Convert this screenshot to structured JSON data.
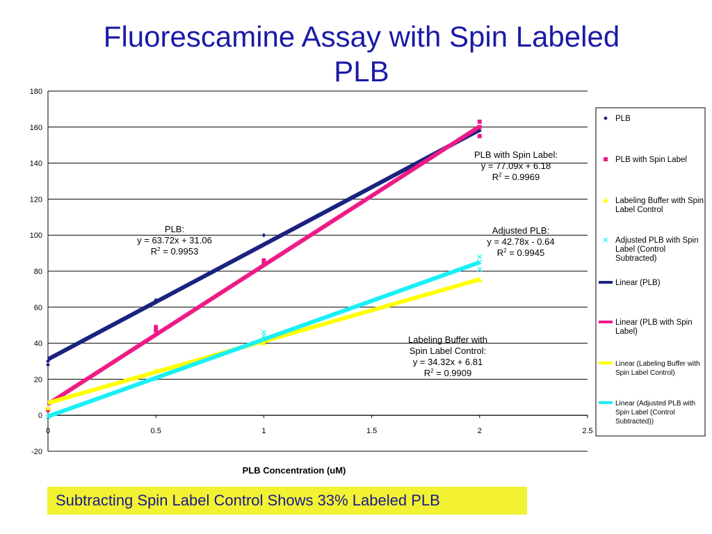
{
  "title": {
    "line1": "Fluorescamine Assay with Spin Labeled",
    "line2": "PLB"
  },
  "note": "Subtracting Spin Label Control Shows 33% Labeled PLB",
  "chart_data": {
    "type": "scatter",
    "xlabel": "PLB Concentration (uM)",
    "ylabel": "",
    "xlim": [
      0,
      2.5
    ],
    "ylim": [
      -20,
      180
    ],
    "xticks": [
      0,
      0.5,
      1,
      1.5,
      2,
      2.5
    ],
    "xtick_labels": [
      "0",
      "0.5",
      "1",
      "1.5",
      "2",
      "2.5"
    ],
    "yticks": [
      -20,
      0,
      20,
      40,
      60,
      80,
      100,
      120,
      140,
      160,
      180
    ],
    "grid": "horizontal",
    "legend_position": "right",
    "series": [
      {
        "name": "PLB",
        "color": "#1a237e",
        "marker": "diamond",
        "x": [
          0,
          0,
          0.5,
          1,
          2
        ],
        "y": [
          28,
          30,
          64,
          100,
          158
        ],
        "trend_name": "Linear (PLB)",
        "slope": 63.72,
        "intercept": 31.06
      },
      {
        "name": "PLB with Spin Label",
        "color": "#ee1b87",
        "marker": "square",
        "x": [
          0,
          0.5,
          0.5,
          1,
          1,
          2,
          2,
          2
        ],
        "y": [
          3,
          47,
          49,
          84,
          86,
          155,
          160,
          163
        ],
        "trend_name": "Linear (PLB with Spin Label)",
        "slope": 77.09,
        "intercept": 6.18
      },
      {
        "name": "Labeling Buffer with Spin Label Control",
        "color": "#ffff00",
        "marker": "triangle",
        "x": [
          0,
          0.5,
          1,
          2
        ],
        "y": [
          4,
          25,
          40,
          75
        ],
        "trend_name": "Linear (Labeling Buffer with Spin Label Control)",
        "slope": 34.32,
        "intercept": 6.81
      },
      {
        "name": "Adjusted PLB with Spin Label (Control Subtracted)",
        "color": "#19f0f5",
        "marker": "x",
        "x": [
          0,
          0.5,
          1,
          1,
          2,
          2,
          2
        ],
        "y": [
          -1,
          20,
          44,
          46,
          81,
          85,
          88
        ],
        "trend_name": "Linear (Adjusted PLB with Spin Label (Control Subtracted))",
        "slope": 42.78,
        "intercept": -0.64
      }
    ],
    "annotations": [
      {
        "lines": [
          "PLB:",
          "y = 63.72x + 31.06",
          "R2 = 0.9953"
        ]
      },
      {
        "lines": [
          "PLB with Spin Label:",
          "y = 77.09x + 6.18",
          "R2 = 0.9969"
        ]
      },
      {
        "lines": [
          "Adjusted PLB:",
          "y = 42.78x - 0.64",
          "R2 = 0.9945"
        ]
      },
      {
        "lines": [
          "Labeling Buffer with",
          "Spin Label Control:",
          "y = 34.32x + 6.81",
          "R2 = 0.9909"
        ]
      }
    ],
    "legend_entries": [
      {
        "label": [
          "PLB"
        ]
      },
      {
        "label": [
          "PLB with Spin Label"
        ]
      },
      {
        "label": [
          "Labeling Buffer with Spin",
          "Label Control"
        ]
      },
      {
        "label": [
          "Adjusted PLB with Spin",
          "Label (Control",
          "Subtracted)"
        ]
      },
      {
        "label": [
          "Linear (PLB)"
        ]
      },
      {
        "label": [
          "Linear (PLB with Spin",
          "Label)"
        ]
      },
      {
        "label": [
          "Linear (Labeling Buffer with",
          "Spin Label Control)"
        ]
      },
      {
        "label": [
          "Linear (Adjusted PLB with",
          "Spin Label (Control",
          "Subtracted))"
        ]
      }
    ]
  }
}
